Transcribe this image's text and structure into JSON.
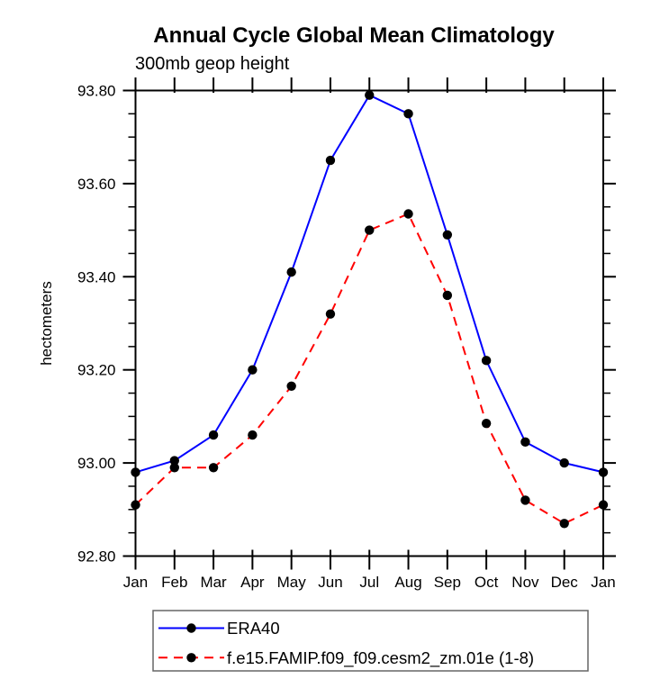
{
  "title": "Annual Cycle Global Mean Climatology",
  "subtitle": "300mb geop height",
  "ylabel": "hectometers",
  "legend": {
    "entries": [
      {
        "label": "ERA40"
      },
      {
        "label": "f.e15.FAMIP.f09_f09.cesm2_zm.01e (1-8)"
      }
    ]
  },
  "colors": {
    "era40_line": "#0000ff",
    "model_line": "#ff0000",
    "marker": "#000000",
    "axis": "#000000",
    "legend_border": "#666666"
  },
  "chart_data": {
    "type": "line",
    "title": "Annual Cycle Global Mean Climatology",
    "subtitle": "300mb geop height",
    "ylabel": "hectometers",
    "xlabel": "",
    "x_categories": [
      "Jan",
      "Feb",
      "Mar",
      "Apr",
      "May",
      "Jun",
      "Jul",
      "Aug",
      "Sep",
      "Oct",
      "Nov",
      "Dec",
      "Jan"
    ],
    "ylim": [
      92.8,
      93.8
    ],
    "ytick_major_step": 0.2,
    "ytick_minor_step": 0.05,
    "ytick_labels": [
      "92.80",
      "93.00",
      "93.20",
      "93.40",
      "93.60",
      "93.80"
    ],
    "grid": false,
    "legend_position": "bottom",
    "series": [
      {
        "name": "ERA40",
        "color": "#0000ff",
        "line_style": "solid",
        "marker": "filled-circle",
        "marker_color": "#000000",
        "values": [
          92.98,
          93.005,
          93.06,
          93.2,
          93.41,
          93.65,
          93.79,
          93.75,
          93.49,
          93.22,
          93.045,
          93.0,
          92.98
        ]
      },
      {
        "name": "f.e15.FAMIP.f09_f09.cesm2_zm.01e (1-8)",
        "color": "#ff0000",
        "line_style": "dashed",
        "marker": "filled-circle",
        "marker_color": "#000000",
        "values": [
          92.91,
          92.99,
          92.99,
          93.06,
          93.165,
          93.32,
          93.5,
          93.535,
          93.36,
          93.085,
          92.92,
          92.87,
          92.91
        ]
      }
    ]
  }
}
